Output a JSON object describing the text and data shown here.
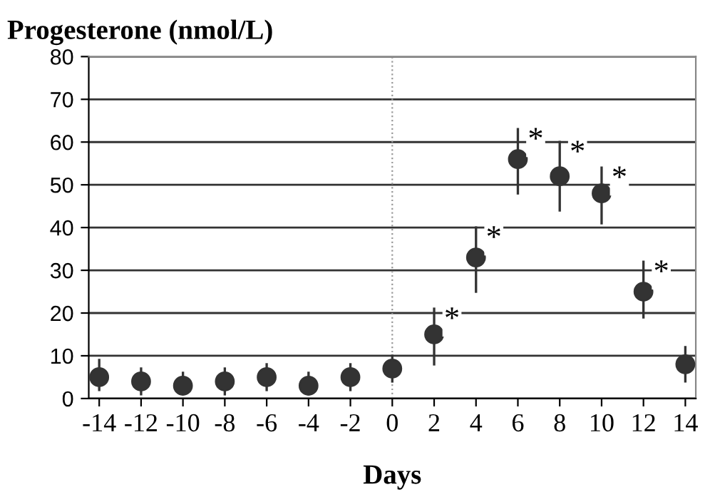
{
  "chart_data": {
    "type": "scatter",
    "ylabel": "Progesterone (nmol/L)",
    "xlabel": "Days",
    "x": [
      -14,
      -12,
      -10,
      -8,
      -6,
      -4,
      -2,
      0,
      2,
      4,
      6,
      8,
      10,
      12,
      14
    ],
    "series": [
      {
        "color": "#333333",
        "values": [
          5,
          4,
          3,
          4,
          5,
          3,
          5,
          7,
          15,
          33,
          56,
          52,
          48,
          25,
          8
        ],
        "errors": [
          [
            2,
            9
          ],
          [
            1,
            7
          ],
          [
            1,
            6
          ],
          [
            1,
            7
          ],
          [
            2,
            8
          ],
          [
            1,
            6
          ],
          [
            2,
            8
          ],
          [
            4,
            10
          ],
          [
            8,
            21
          ],
          [
            25,
            40
          ],
          [
            48,
            63
          ],
          [
            44,
            60
          ],
          [
            41,
            54
          ],
          [
            19,
            32
          ],
          [
            4,
            12
          ]
        ]
      }
    ],
    "marker": "circle",
    "xlim": [
      -14.5,
      14.5
    ],
    "xticks": [
      -14,
      -12,
      -10,
      -8,
      -6,
      -4,
      -2,
      0,
      2,
      4,
      6,
      8,
      10,
      12,
      14
    ],
    "ylim": [
      0,
      80
    ],
    "yticks": [
      0,
      10,
      20,
      30,
      40,
      50,
      60,
      70,
      80
    ],
    "grid": "y",
    "ref_lines": [
      {
        "axis": "x",
        "value": 0,
        "color": "#999999",
        "line_style": "dotted"
      }
    ],
    "annotations": [
      {
        "text": "*",
        "x": 2,
        "y": 21
      },
      {
        "text": "*",
        "x": 4,
        "y": 40
      },
      {
        "text": "*",
        "x": 6,
        "y": 63
      },
      {
        "text": "*",
        "x": 8,
        "y": 60
      },
      {
        "text": "*",
        "x": 10,
        "y": 54
      },
      {
        "text": "*",
        "x": 12,
        "y": 32
      }
    ]
  }
}
